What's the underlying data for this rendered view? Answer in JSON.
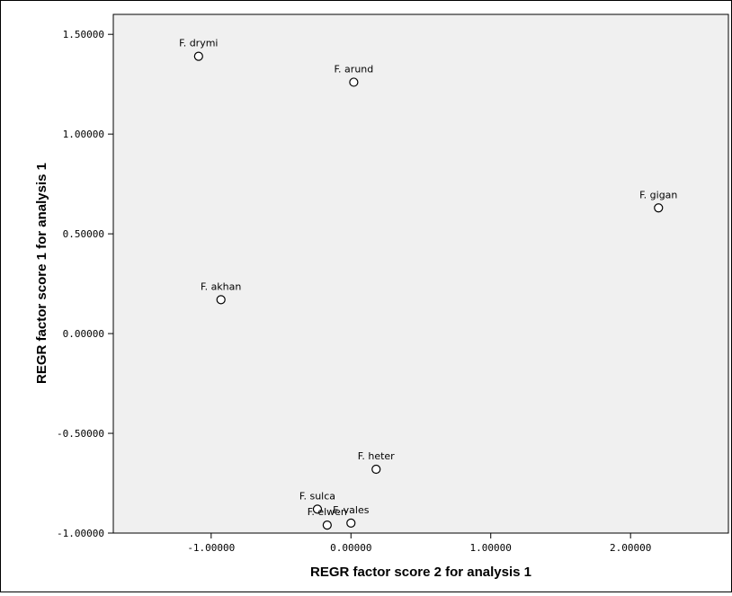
{
  "colors": {
    "plot_background": "#f0f0f0",
    "point_stroke": "#000000",
    "point_fill": "#ffffff"
  },
  "chart_data": {
    "type": "scatter",
    "xlabel": "REGR factor score   2 for analysis 1",
    "ylabel": "REGR factor score   1 for analysis 1",
    "xlim": [
      -1.7,
      2.7
    ],
    "ylim": [
      -1.0,
      1.6
    ],
    "x_ticks": [
      {
        "value": -1.0,
        "label": "-1.00000"
      },
      {
        "value": 0.0,
        "label": "0.00000"
      },
      {
        "value": 1.0,
        "label": "1.00000"
      },
      {
        "value": 2.0,
        "label": "2.00000"
      }
    ],
    "y_ticks": [
      {
        "value": 1.5,
        "label": "1.50000"
      },
      {
        "value": 1.0,
        "label": "1.00000"
      },
      {
        "value": 0.5,
        "label": "0.50000"
      },
      {
        "value": 0.0,
        "label": "0.00000"
      },
      {
        "value": -0.5,
        "label": "-0.50000"
      },
      {
        "value": -1.0,
        "label": "-1.00000"
      }
    ],
    "grid": false,
    "legend": false,
    "points": [
      {
        "label": "F. drymi",
        "x": -1.09,
        "y": 1.39
      },
      {
        "label": "F. arund",
        "x": 0.02,
        "y": 1.26
      },
      {
        "label": "F. gigan",
        "x": 2.2,
        "y": 0.63
      },
      {
        "label": "F. akhan",
        "x": -0.93,
        "y": 0.17
      },
      {
        "label": "F. heter",
        "x": 0.18,
        "y": -0.68
      },
      {
        "label": "F. sulca",
        "x": -0.24,
        "y": -0.88
      },
      {
        "label": "F. vales",
        "x": 0.0,
        "y": -0.95
      },
      {
        "label": "F. elwen",
        "x": -0.17,
        "y": -0.96
      }
    ]
  }
}
